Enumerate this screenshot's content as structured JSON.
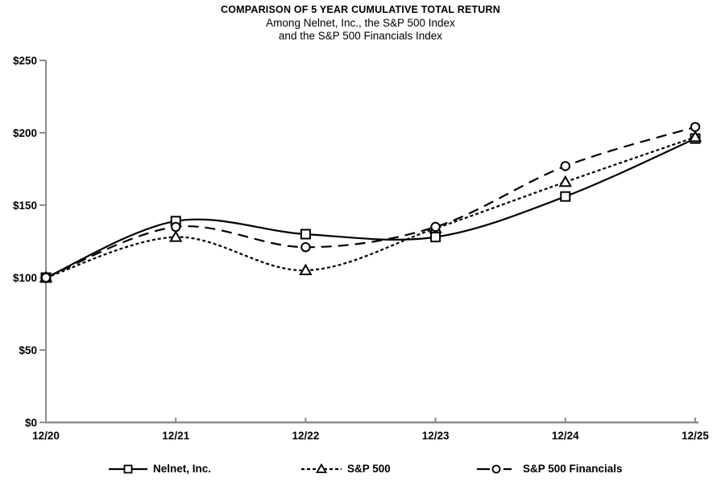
{
  "title": "COMPARISON OF 5 YEAR CUMULATIVE TOTAL RETURN",
  "subtitle_line1": "Among Nelnet, Inc., the S&P 500 Index",
  "subtitle_line2": "and the S&P 500 Financials Index",
  "colors": {
    "line": "#000000",
    "axis": "#8c8c8c",
    "text": "#000000",
    "background": "#ffffff",
    "marker_fill": "#ffffff"
  },
  "chart_data": {
    "type": "line",
    "smooth": true,
    "grid": false,
    "legend_position": "bottom",
    "title": "COMPARISON OF 5 YEAR CUMULATIVE TOTAL RETURN",
    "xlabel": "",
    "ylabel": "",
    "ylim": [
      0,
      250
    ],
    "categories": [
      "12/20",
      "12/21",
      "12/22",
      "12/23",
      "12/24",
      "12/25"
    ],
    "ytick_labels": [
      "$0",
      "$50",
      "$100",
      "$150",
      "$200",
      "$250"
    ],
    "ytick_values": [
      0,
      50,
      100,
      150,
      200,
      250
    ],
    "series": [
      {
        "name": "Nelnet, Inc.",
        "marker": "square",
        "line_style": "solid",
        "values": [
          100,
          139,
          130,
          128,
          156,
          196
        ]
      },
      {
        "name": "S&P 500",
        "marker": "triangle",
        "line_style": "dotted",
        "values": [
          100,
          128,
          105,
          134,
          166,
          197
        ]
      },
      {
        "name": "S&P 500 Financials",
        "marker": "circle",
        "line_style": "dashed",
        "values": [
          100,
          135,
          121,
          135,
          177,
          204
        ]
      }
    ]
  }
}
